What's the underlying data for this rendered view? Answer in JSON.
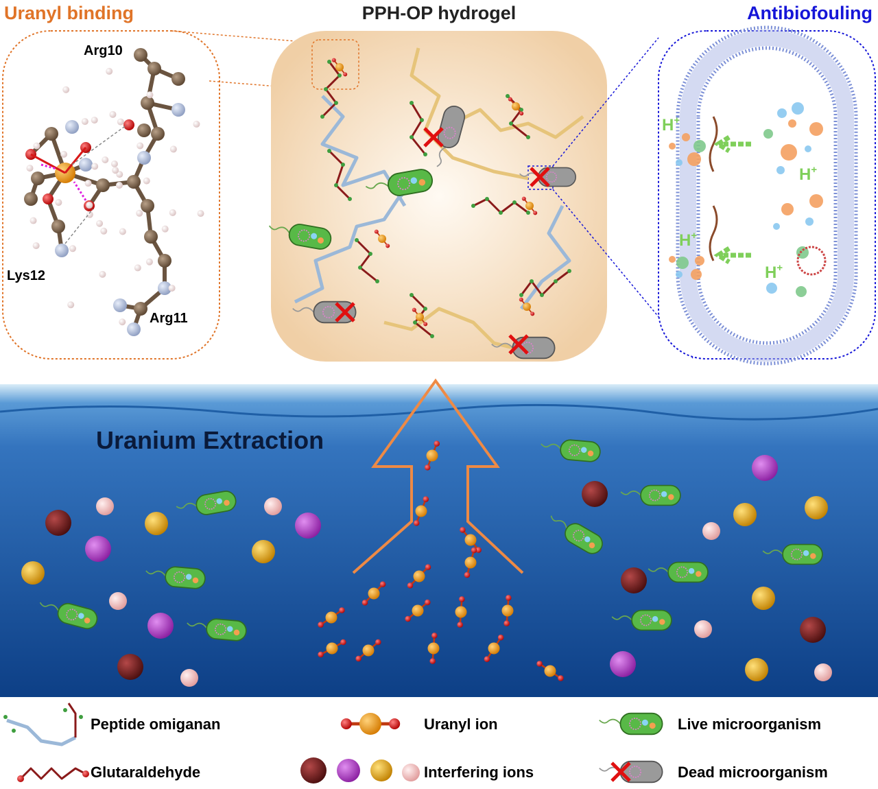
{
  "titles": {
    "uranyl_binding": "Uranyl binding",
    "hydrogel": "PPH-OP hydrogel",
    "antibiofouling": "Antibiofouling"
  },
  "residues": {
    "arg10": "Arg10",
    "lys12": "Lys12",
    "arg11": "Arg11"
  },
  "proton_label": {
    "base": "H",
    "sup": "+"
  },
  "extraction_label": "Uranium Extraction",
  "legend": {
    "peptide": "Peptide omiganan",
    "uranyl": "Uranyl ion",
    "live": "Live microorganism",
    "glutaraldehyde": "Glutaraldehyde",
    "interfering": "Interfering ions",
    "dead": "Dead microorganism"
  },
  "colors": {
    "uranyl_title": "#e07428",
    "antibiofouling_title": "#1515d8",
    "hydrogel_bg": "#f3d8b6",
    "water_top": "#3b7fc4",
    "water_bottom": "#0d3f86",
    "uranium": "#e8920c",
    "oxygen": "#d81818",
    "live_cell": "#58b947",
    "dead_cell": "#9a9a9a",
    "ion_maroon": "#7a1c1c",
    "ion_purple": "#b23ec8",
    "ion_gold": "#e6a81a",
    "ion_pink": "#f2bcbc",
    "proton": "#7fcf5a",
    "membrane": "#7b8fd6"
  }
}
